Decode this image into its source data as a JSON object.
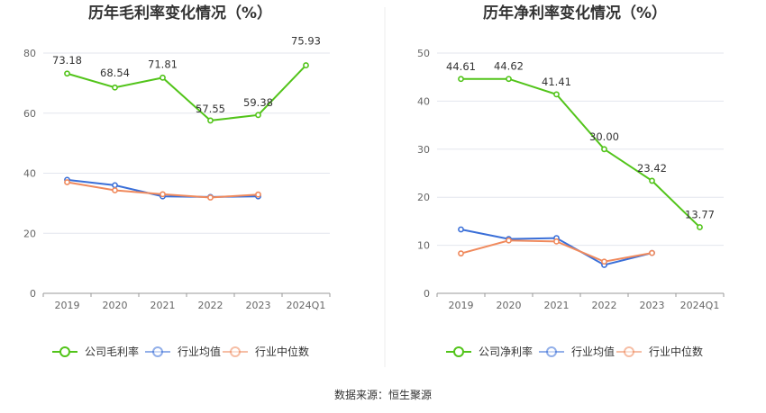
{
  "source": "数据来源：恒生聚源",
  "chart_data": [
    {
      "type": "line",
      "title": "历年毛利率变化情况（%）",
      "categories": [
        "2019",
        "2020",
        "2021",
        "2022",
        "2023",
        "2024Q1"
      ],
      "ylim": [
        0,
        80
      ],
      "yticks": [
        0,
        20,
        40,
        60,
        80
      ],
      "grid": true,
      "legend_position": "bottom",
      "series": [
        {
          "name": "公司毛利率",
          "color": "#52c41a",
          "values": [
            73.18,
            68.54,
            71.81,
            57.55,
            59.38,
            75.93
          ],
          "labels": [
            "73.18",
            "68.54",
            "71.81",
            "57.55",
            "59.38",
            "75.93"
          ]
        },
        {
          "name": "行业均值",
          "color": "#3a6fd8",
          "values": [
            37.8,
            36.0,
            32.3,
            32.1,
            32.3,
            null
          ]
        },
        {
          "name": "行业中位数",
          "color": "#f08a5d",
          "values": [
            37.0,
            34.3,
            33.0,
            31.9,
            32.9,
            null
          ]
        }
      ]
    },
    {
      "type": "line",
      "title": "历年净利率变化情况（%）",
      "categories": [
        "2019",
        "2020",
        "2021",
        "2022",
        "2023",
        "2024Q1"
      ],
      "ylim": [
        0,
        50
      ],
      "yticks": [
        0,
        10,
        20,
        30,
        40,
        50
      ],
      "grid": true,
      "legend_position": "bottom",
      "series": [
        {
          "name": "公司净利率",
          "color": "#52c41a",
          "values": [
            44.61,
            44.62,
            41.41,
            30.0,
            23.42,
            13.77
          ],
          "labels": [
            "44.61",
            "44.62",
            "41.41",
            "30.00",
            "23.42",
            "13.77"
          ]
        },
        {
          "name": "行业均值",
          "color": "#3a6fd8",
          "values": [
            13.3,
            11.3,
            11.5,
            5.9,
            8.4,
            null
          ]
        },
        {
          "name": "行业中位数",
          "color": "#f08a5d",
          "values": [
            8.3,
            11.0,
            10.8,
            6.6,
            8.4,
            null
          ]
        }
      ]
    }
  ]
}
